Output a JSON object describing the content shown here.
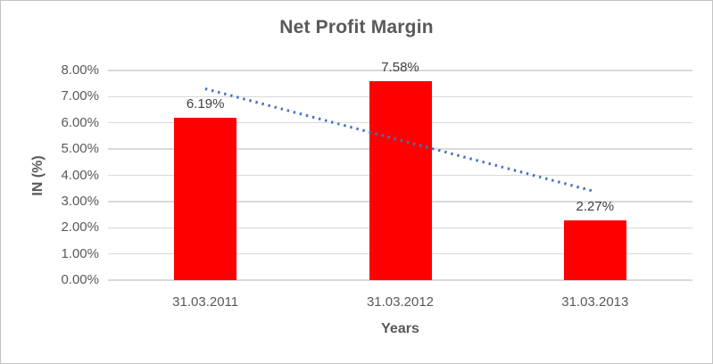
{
  "chart_data": {
    "type": "bar",
    "title": "Net Profit Margin",
    "xlabel": "Years",
    "ylabel": "IN (%)",
    "categories": [
      "31.03.2011",
      "31.03.2012",
      "31.03.2013"
    ],
    "values": [
      6.19,
      7.58,
      2.27
    ],
    "data_labels": [
      "6.19%",
      "7.58%",
      "2.27%"
    ],
    "ylim": [
      0,
      8
    ],
    "ytick_step": 1,
    "ytick_labels": [
      "0.00%",
      "1.00%",
      "2.00%",
      "3.00%",
      "4.00%",
      "5.00%",
      "6.00%",
      "7.00%",
      "8.00%"
    ],
    "grid": true,
    "legend": false,
    "colors": {
      "bar": "#FF0000",
      "trendline": "#4472C4",
      "gridline": "#D9D9D9",
      "axis_text": "#595959",
      "data_label_text": "#404040",
      "frame_border": "#C4C4C4",
      "background": "#FFFFFF"
    },
    "trendline": {
      "type": "linear",
      "style": "dotted",
      "start_value": 7.31,
      "end_value": 3.39
    }
  }
}
